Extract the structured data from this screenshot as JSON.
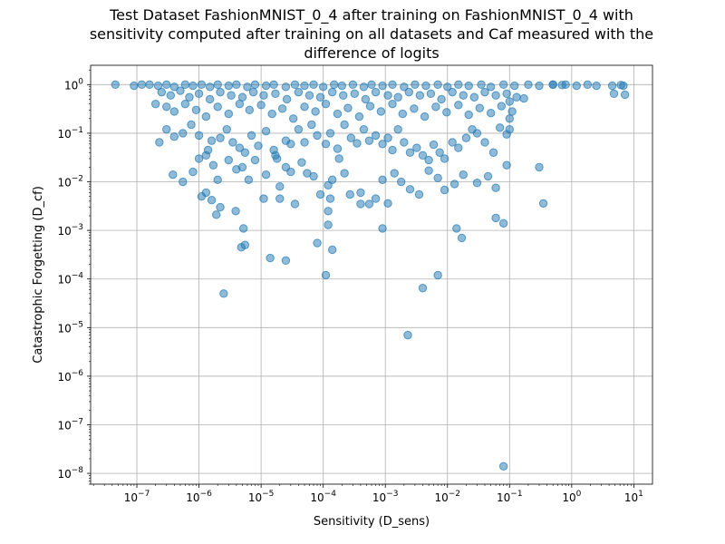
{
  "chart_data": {
    "type": "scatter",
    "title_lines": [
      "Test Dataset FashionMNIST_0_4 after training on FashionMNIST_0_4 with",
      "sensitivity computed after training on all datasets and Caf measured with the",
      "difference of logits"
    ],
    "xlabel": "Sensitivity (D_sens)",
    "ylabel": "Catastrophic Forgetting (D_cf)",
    "x_scale": "log",
    "y_scale": "log",
    "xlim": [
      1.8e-08,
      20
    ],
    "ylim": [
      6e-09,
      2.5
    ],
    "grid": true,
    "x_ticks": [
      {
        "base": "10",
        "exp": "−7",
        "value": 1e-07
      },
      {
        "base": "10",
        "exp": "−6",
        "value": 1e-06
      },
      {
        "base": "10",
        "exp": "−5",
        "value": 1e-05
      },
      {
        "base": "10",
        "exp": "−4",
        "value": 0.0001
      },
      {
        "base": "10",
        "exp": "−3",
        "value": 0.001
      },
      {
        "base": "10",
        "exp": "−2",
        "value": 0.01
      },
      {
        "base": "10",
        "exp": "−1",
        "value": 0.1
      },
      {
        "base": "10",
        "exp": "0",
        "value": 1
      },
      {
        "base": "10",
        "exp": "1",
        "value": 10
      }
    ],
    "y_ticks": [
      {
        "base": "10",
        "exp": "−8",
        "value": 1e-08
      },
      {
        "base": "10",
        "exp": "−7",
        "value": 1e-07
      },
      {
        "base": "10",
        "exp": "−6",
        "value": 1e-06
      },
      {
        "base": "10",
        "exp": "−5",
        "value": 1e-05
      },
      {
        "base": "10",
        "exp": "−4",
        "value": 0.0001
      },
      {
        "base": "10",
        "exp": "−3",
        "value": 0.001
      },
      {
        "base": "10",
        "exp": "−2",
        "value": 0.01
      },
      {
        "base": "10",
        "exp": "−1",
        "value": 0.1
      },
      {
        "base": "10",
        "exp": "0",
        "value": 1
      }
    ],
    "marker_color": "#1f77b4",
    "points": [
      [
        4.5e-08,
        1.0
      ],
      [
        9e-08,
        0.95
      ],
      [
        1.2e-07,
        1.0
      ],
      [
        1.6e-07,
        1.0
      ],
      [
        2.2e-07,
        0.95
      ],
      [
        3e-07,
        1.0
      ],
      [
        4e-07,
        0.9
      ],
      [
        6e-07,
        1.0
      ],
      [
        8e-07,
        0.95
      ],
      [
        1.1e-06,
        1.0
      ],
      [
        1.5e-06,
        0.9
      ],
      [
        2e-06,
        1.0
      ],
      [
        3e-06,
        0.95
      ],
      [
        4e-06,
        1.0
      ],
      [
        6e-06,
        0.9
      ],
      [
        8e-06,
        1.0
      ],
      [
        1.2e-05,
        0.95
      ],
      [
        1.6e-05,
        1.0
      ],
      [
        2.5e-05,
        0.9
      ],
      [
        3.5e-05,
        1.0
      ],
      [
        5e-05,
        0.95
      ],
      [
        7e-05,
        1.0
      ],
      [
        0.0001,
        0.9
      ],
      [
        0.00015,
        1.0
      ],
      [
        0.0002,
        0.95
      ],
      [
        0.0003,
        1.0
      ],
      [
        0.00045,
        0.9
      ],
      [
        0.0006,
        1.0
      ],
      [
        0.0009,
        0.95
      ],
      [
        0.0013,
        1.0
      ],
      [
        0.002,
        0.9
      ],
      [
        0.003,
        1.0
      ],
      [
        0.0045,
        0.95
      ],
      [
        0.007,
        1.0
      ],
      [
        0.01,
        0.9
      ],
      [
        0.015,
        1.0
      ],
      [
        0.022,
        0.95
      ],
      [
        0.035,
        1.0
      ],
      [
        0.05,
        0.9
      ],
      [
        0.08,
        1.0
      ],
      [
        0.12,
        0.95
      ],
      [
        0.2,
        1.0
      ],
      [
        0.3,
        0.95
      ],
      [
        0.5,
        1.0
      ],
      [
        0.8,
        1.0
      ],
      [
        1.2,
        0.95
      ],
      [
        1.8,
        1.0
      ],
      [
        2.5,
        0.95
      ],
      [
        4.5,
        0.95
      ],
      [
        6.2,
        0.98
      ],
      [
        6.8,
        0.95
      ],
      [
        4.8,
        0.65
      ],
      [
        7.2,
        0.62
      ],
      [
        0.5,
        1.0
      ],
      [
        0.7,
        0.98
      ],
      [
        2.5e-07,
        0.7
      ],
      [
        3.5e-07,
        0.6
      ],
      [
        5e-07,
        0.75
      ],
      [
        7e-07,
        0.55
      ],
      [
        1e-06,
        0.65
      ],
      [
        1.5e-06,
        0.5
      ],
      [
        2.2e-06,
        0.7
      ],
      [
        3.3e-06,
        0.6
      ],
      [
        5e-06,
        0.55
      ],
      [
        7.5e-06,
        0.7
      ],
      [
        1.1e-05,
        0.6
      ],
      [
        1.7e-05,
        0.65
      ],
      [
        2.6e-05,
        0.5
      ],
      [
        4e-05,
        0.7
      ],
      [
        6e-05,
        0.6
      ],
      [
        9e-05,
        0.55
      ],
      [
        0.00014,
        0.7
      ],
      [
        0.00021,
        0.6
      ],
      [
        0.00032,
        0.65
      ],
      [
        0.00048,
        0.5
      ],
      [
        0.0007,
        0.7
      ],
      [
        0.0011,
        0.6
      ],
      [
        0.0016,
        0.55
      ],
      [
        0.0024,
        0.7
      ],
      [
        0.0036,
        0.6
      ],
      [
        0.0054,
        0.65
      ],
      [
        0.008,
        0.5
      ],
      [
        0.012,
        0.7
      ],
      [
        0.018,
        0.6
      ],
      [
        0.027,
        0.55
      ],
      [
        0.04,
        0.7
      ],
      [
        0.06,
        0.6
      ],
      [
        0.09,
        0.65
      ],
      [
        0.13,
        0.55
      ],
      [
        2e-07,
        0.4
      ],
      [
        3e-07,
        0.35
      ],
      [
        4e-07,
        0.28
      ],
      [
        6e-07,
        0.4
      ],
      [
        9e-07,
        0.3
      ],
      [
        1.3e-06,
        0.22
      ],
      [
        2e-06,
        0.35
      ],
      [
        3e-06,
        0.25
      ],
      [
        4.5e-06,
        0.4
      ],
      [
        6.5e-06,
        0.3
      ],
      [
        1e-05,
        0.38
      ],
      [
        1.5e-05,
        0.25
      ],
      [
        2.2e-05,
        0.32
      ],
      [
        3.3e-05,
        0.2
      ],
      [
        5e-05,
        0.35
      ],
      [
        7.5e-05,
        0.28
      ],
      [
        0.00011,
        0.4
      ],
      [
        0.00017,
        0.25
      ],
      [
        0.00025,
        0.33
      ],
      [
        0.00038,
        0.22
      ],
      [
        0.00057,
        0.36
      ],
      [
        0.00085,
        0.28
      ],
      [
        0.0013,
        0.4
      ],
      [
        0.0019,
        0.25
      ],
      [
        0.0029,
        0.32
      ],
      [
        0.0043,
        0.22
      ],
      [
        0.0065,
        0.35
      ],
      [
        0.0097,
        0.27
      ],
      [
        0.015,
        0.38
      ],
      [
        0.022,
        0.24
      ],
      [
        0.033,
        0.33
      ],
      [
        0.05,
        0.26
      ],
      [
        0.074,
        0.36
      ],
      [
        0.11,
        0.28
      ],
      [
        0.1,
        0.2
      ],
      [
        0.17,
        0.52
      ],
      [
        0.1,
        0.45
      ],
      [
        2.3e-07,
        0.065
      ],
      [
        3e-07,
        0.12
      ],
      [
        4e-07,
        0.085
      ],
      [
        5.5e-07,
        0.1
      ],
      [
        7.5e-07,
        0.15
      ],
      [
        1e-06,
        0.09
      ],
      [
        1.4e-06,
        0.045
      ],
      [
        1.6e-06,
        0.07
      ],
      [
        2.2e-06,
        0.08
      ],
      [
        2.8e-06,
        0.12
      ],
      [
        3.5e-06,
        0.065
      ],
      [
        4.5e-06,
        0.05
      ],
      [
        5.5e-06,
        0.04
      ],
      [
        7e-06,
        0.09
      ],
      [
        9e-06,
        0.055
      ],
      [
        1.2e-05,
        0.11
      ],
      [
        1.6e-05,
        0.045
      ],
      [
        1.8e-05,
        0.03
      ],
      [
        2.5e-05,
        0.07
      ],
      [
        3e-05,
        0.06
      ],
      [
        4e-05,
        0.12
      ],
      [
        5e-05,
        0.065
      ],
      [
        6.5e-05,
        0.15
      ],
      [
        8e-05,
        0.09
      ],
      [
        0.00011,
        0.06
      ],
      [
        0.00013,
        0.1
      ],
      [
        0.00017,
        0.048
      ],
      [
        0.00022,
        0.15
      ],
      [
        0.00028,
        0.08
      ],
      [
        0.00035,
        0.062
      ],
      [
        0.00045,
        0.12
      ],
      [
        0.00055,
        0.07
      ],
      [
        0.0007,
        0.09
      ],
      [
        0.0009,
        0.06
      ],
      [
        0.0011,
        0.08
      ],
      [
        0.0013,
        0.045
      ],
      [
        0.0016,
        0.12
      ],
      [
        0.002,
        0.065
      ],
      [
        0.0025,
        0.04
      ],
      [
        0.0032,
        0.05
      ],
      [
        0.004,
        0.035
      ],
      [
        0.005,
        0.028
      ],
      [
        0.006,
        0.058
      ],
      [
        0.0075,
        0.04
      ],
      [
        0.009,
        0.03
      ],
      [
        0.012,
        0.065
      ],
      [
        0.015,
        0.05
      ],
      [
        0.02,
        0.08
      ],
      [
        0.025,
        0.12
      ],
      [
        0.03,
        0.1
      ],
      [
        0.04,
        0.065
      ],
      [
        0.055,
        0.04
      ],
      [
        0.07,
        0.13
      ],
      [
        0.09,
        0.095
      ],
      [
        0.1,
        0.12
      ],
      [
        3.8e-07,
        0.014
      ],
      [
        5.5e-07,
        0.01
      ],
      [
        8e-07,
        0.016
      ],
      [
        1e-06,
        0.03
      ],
      [
        1.3e-06,
        0.035
      ],
      [
        1.7e-06,
        0.022
      ],
      [
        2e-06,
        0.011
      ],
      [
        3e-06,
        0.028
      ],
      [
        4e-06,
        0.018
      ],
      [
        5e-06,
        0.02
      ],
      [
        6.3e-06,
        0.011
      ],
      [
        8e-06,
        0.028
      ],
      [
        1.2e-05,
        0.014
      ],
      [
        1.7e-05,
        0.035
      ],
      [
        2e-05,
        0.008
      ],
      [
        2.5e-05,
        0.02
      ],
      [
        3e-05,
        0.016
      ],
      [
        3.5e-05,
        0.0035
      ],
      [
        4.5e-05,
        0.025
      ],
      [
        5.5e-05,
        0.015
      ],
      [
        7e-05,
        0.013
      ],
      [
        9e-05,
        0.0055
      ],
      [
        0.00012,
        0.0085
      ],
      [
        0.00014,
        0.011
      ],
      [
        0.00018,
        0.03
      ],
      [
        0.00022,
        0.015
      ],
      [
        0.00027,
        0.0055
      ],
      [
        0.0004,
        0.006
      ],
      [
        0.00055,
        0.0035
      ],
      [
        0.0007,
        0.0045
      ],
      [
        0.0009,
        0.011
      ],
      [
        0.0011,
        0.0036
      ],
      [
        0.0014,
        0.015
      ],
      [
        0.0018,
        0.01
      ],
      [
        0.0025,
        0.007
      ],
      [
        0.0035,
        0.0055
      ],
      [
        0.005,
        0.017
      ],
      [
        0.007,
        0.012
      ],
      [
        0.009,
        0.0068
      ],
      [
        0.013,
        0.009
      ],
      [
        0.018,
        0.014
      ],
      [
        0.03,
        0.0095
      ],
      [
        0.045,
        0.013
      ],
      [
        0.06,
        0.0075
      ],
      [
        0.09,
        0.022
      ],
      [
        0.3,
        0.02
      ],
      [
        1.1e-06,
        0.005
      ],
      [
        1.3e-06,
        0.006
      ],
      [
        1.6e-06,
        0.0042
      ],
      [
        1.9e-06,
        0.0021
      ],
      [
        2.2e-06,
        0.003
      ],
      [
        3.9e-06,
        0.0025
      ],
      [
        4.8e-06,
        0.00045
      ],
      [
        5.2e-06,
        0.0011
      ],
      [
        5.5e-06,
        0.0005
      ],
      [
        1.1e-05,
        0.0045
      ],
      [
        2e-05,
        0.0045
      ],
      [
        0.00012,
        0.0025
      ],
      [
        0.00012,
        0.0013
      ],
      [
        0.00013,
        0.0045
      ],
      [
        0.0004,
        0.0035
      ],
      [
        0.0009,
        0.0011
      ],
      [
        0.014,
        0.0011
      ],
      [
        0.017,
        0.0007
      ],
      [
        0.06,
        0.0018
      ],
      [
        0.08,
        0.0014
      ],
      [
        0.35,
        0.0036
      ],
      [
        1.4e-05,
        0.00027
      ],
      [
        2.5e-05,
        0.00024
      ],
      [
        8e-05,
        0.00055
      ],
      [
        0.00011,
        0.00012
      ],
      [
        0.00014,
        0.0004
      ],
      [
        0.007,
        0.00012
      ],
      [
        0.004,
        6.5e-05
      ],
      [
        2.5e-06,
        5e-05
      ],
      [
        0.0023,
        7e-06
      ],
      [
        0.08,
        1.4e-08
      ]
    ]
  }
}
